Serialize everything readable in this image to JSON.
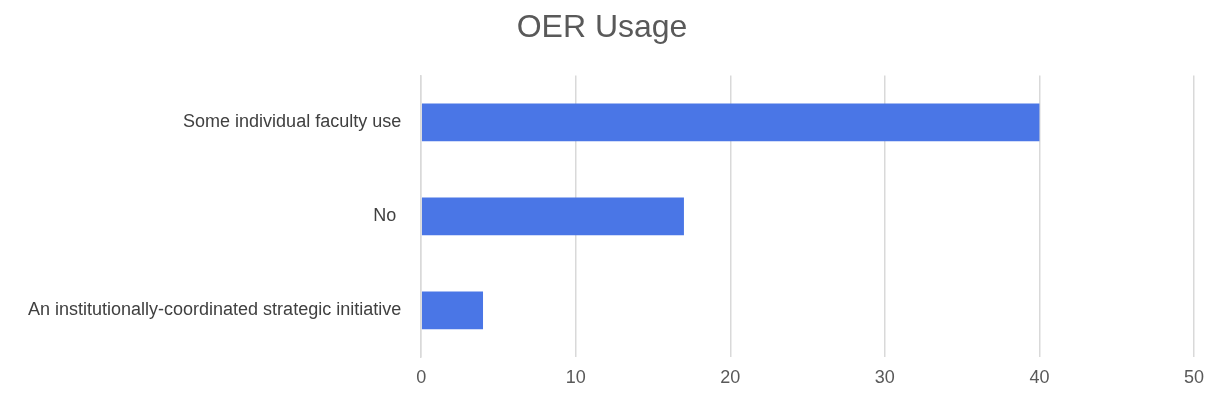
{
  "chart_data": {
    "type": "bar",
    "title": "OER Usage",
    "orientation": "horizontal",
    "categories": [
      "Some individual faculty use",
      "No ",
      "An institutionally-coordinated strategic initiative"
    ],
    "values": [
      40,
      17,
      4
    ],
    "color": "#4a76e6",
    "xlim": [
      0,
      50
    ],
    "xticks": [
      0,
      10,
      20,
      30,
      40,
      50
    ],
    "grid": "x",
    "legend": false
  }
}
